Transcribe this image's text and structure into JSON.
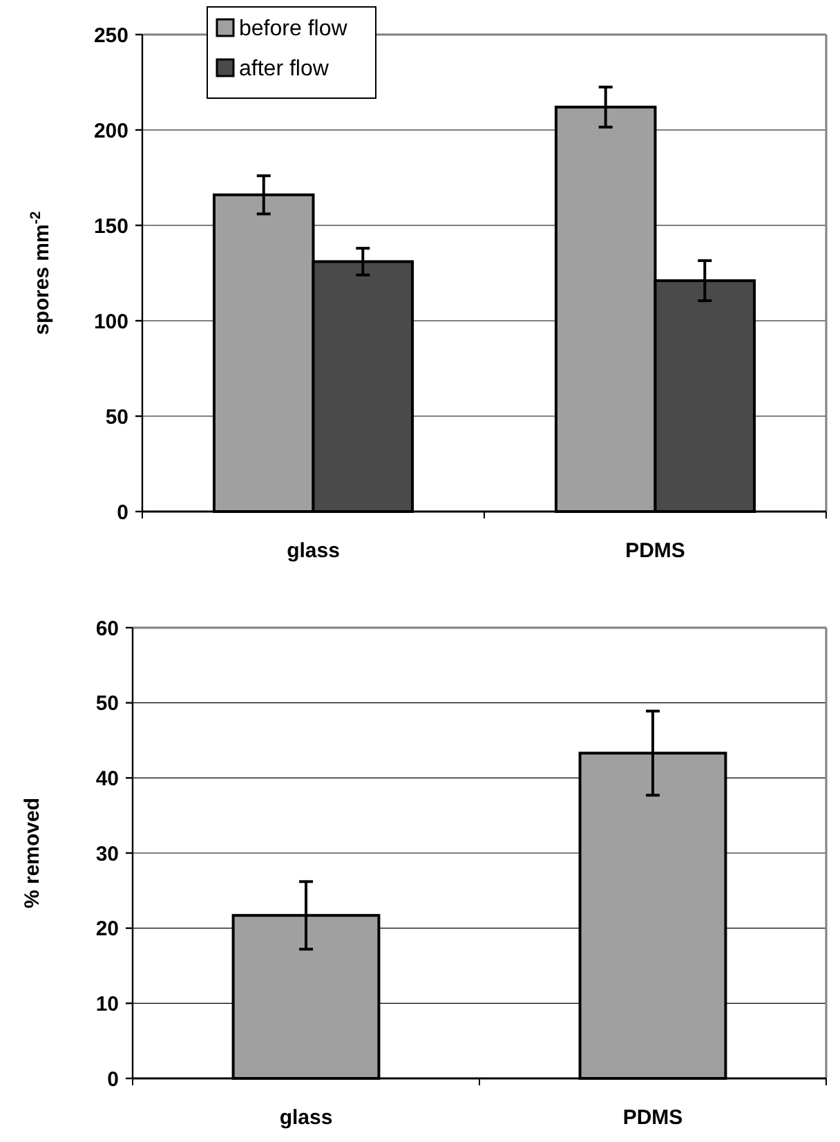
{
  "chart_data": [
    {
      "type": "bar",
      "ylabel": "spores mm$^{-2}$",
      "categories": [
        "glass",
        "PDMS"
      ],
      "series": [
        {
          "name": "before flow",
          "color": "#a0a0a0",
          "values": [
            166,
            212
          ],
          "errors": [
            10,
            10.5
          ]
        },
        {
          "name": "after flow",
          "color": "#4a4a4a",
          "values": [
            131,
            121
          ],
          "errors": [
            7,
            10.5
          ]
        }
      ],
      "ylim": [
        0,
        250
      ],
      "yticks": [
        0,
        50,
        100,
        150,
        200,
        250
      ],
      "grid": "y",
      "legend": "top left"
    },
    {
      "type": "bar",
      "ylabel": "% removed",
      "categories": [
        "glass",
        "PDMS"
      ],
      "series": [
        {
          "color": "#a0a0a0",
          "values": [
            21.7,
            43.3
          ],
          "errors": [
            4.5,
            5.6
          ]
        }
      ],
      "ylim": [
        0,
        60
      ],
      "yticks": [
        0,
        10,
        20,
        30,
        40,
        50,
        60
      ],
      "grid": "y"
    }
  ]
}
